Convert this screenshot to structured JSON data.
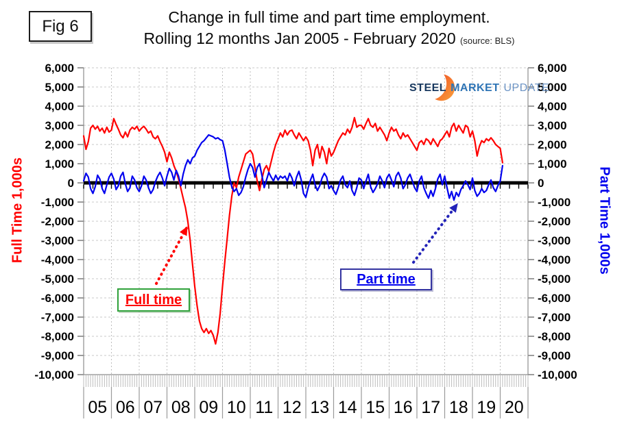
{
  "fig_label": "Fig 6",
  "title": {
    "line1": "Change in full time and part time employment.",
    "line2": "Rolling 12 months Jan 2005 - February 2020",
    "source": "(source: BLS)"
  },
  "logo": {
    "word1": "STEEL",
    "word2": "MARKET",
    "word3": "UPDATE"
  },
  "axes": {
    "left_title": "Full Time 1,000s",
    "right_title": "Part Time 1,000s"
  },
  "annotations": {
    "full_time": "Full time",
    "part_time": "Part time"
  },
  "colors": {
    "full_time_line": "#ff0000",
    "part_time_line": "#0000ee",
    "zero_line": "#000000",
    "grid": "#c9c9c9",
    "full_time_box_border": "#2fa13a",
    "part_time_box_border": "#3333a0",
    "full_time_text": "#ff0000",
    "part_time_text": "#0000ee",
    "arrow_red": "#ff0000",
    "arrow_blue": "#2323b8",
    "logo_steel": "#17375E",
    "logo_market": "#2E74B5",
    "logo_update": "#6b93c4",
    "logo_orange_start": "#f04e23",
    "logo_orange_end": "#f9a23c"
  },
  "chart_data": {
    "type": "line",
    "title": "Change in full time and part time employment. Rolling 12 months Jan 2005 - February 2020",
    "x_start": "2005-01",
    "x_end": "2020-02",
    "x_year_labels": [
      "05",
      "06",
      "07",
      "08",
      "09",
      "10",
      "11",
      "12",
      "13",
      "14",
      "15",
      "16",
      "17",
      "18",
      "19",
      "20"
    ],
    "y_ticks": [
      6000,
      5000,
      4000,
      3000,
      2000,
      1000,
      0,
      -1000,
      -2000,
      -3000,
      -4000,
      -5000,
      -6000,
      -7000,
      -8000,
      -9000,
      -10000
    ],
    "ylim": [
      -10000,
      6000
    ],
    "y_units": "thousands of jobs (rolling 12-month change)",
    "grid": true,
    "legend_position": "in-plot annotation boxes",
    "series": [
      {
        "name": "Full time",
        "color": "#ff0000",
        "monthly_values": [
          2450,
          1750,
          2150,
          2850,
          3000,
          2800,
          2950,
          2700,
          2850,
          2600,
          2900,
          2650,
          2750,
          3350,
          3050,
          2800,
          2500,
          2350,
          2650,
          2400,
          2750,
          2900,
          2800,
          2950,
          2700,
          2850,
          2950,
          2800,
          2600,
          2700,
          2400,
          2300,
          2450,
          2150,
          1900,
          1600,
          1100,
          1600,
          1300,
          900,
          600,
          200,
          -300,
          -800,
          -1300,
          -2000,
          -3000,
          -4200,
          -5400,
          -6400,
          -7200,
          -7600,
          -7800,
          -7600,
          -7850,
          -7700,
          -7950,
          -8400,
          -7800,
          -6800,
          -5400,
          -4100,
          -2900,
          -1700,
          -700,
          0,
          -250,
          300,
          700,
          1100,
          1500,
          1600,
          1700,
          1500,
          800,
          100,
          -400,
          200,
          700,
          900,
          600,
          1100,
          1600,
          2000,
          2300,
          2600,
          2400,
          2750,
          2500,
          2700,
          2750,
          2500,
          2300,
          2600,
          2400,
          2200,
          2400,
          2200,
          1700,
          900,
          1700,
          2000,
          1300,
          1900,
          1600,
          1000,
          1800,
          1400,
          1600,
          1900,
          2200,
          2400,
          2600,
          2500,
          2800,
          2600,
          2900,
          3400,
          2900,
          3000,
          3000,
          2800,
          3100,
          3350,
          3000,
          2900,
          3100,
          2700,
          2900,
          2700,
          2500,
          2200,
          2600,
          2900,
          2700,
          2800,
          2500,
          2300,
          2600,
          2400,
          2500,
          2300,
          2100,
          1900,
          1700,
          2100,
          2200,
          2000,
          2300,
          2200,
          2000,
          2300,
          2100,
          1900,
          2200,
          2300,
          2500,
          2700,
          2400,
          2900,
          3100,
          2700,
          3000,
          2800,
          2600,
          3000,
          2900,
          2400,
          2700,
          2200,
          1400,
          1900,
          2200,
          2100,
          2300,
          2200,
          2350,
          2200,
          2000,
          1900,
          1800,
          1050
        ]
      },
      {
        "name": "Part time",
        "color": "#0000ee",
        "monthly_values": [
          100,
          500,
          300,
          -300,
          -550,
          -200,
          400,
          200,
          -300,
          -550,
          -100,
          300,
          500,
          200,
          -350,
          -150,
          350,
          550,
          -50,
          -450,
          -250,
          350,
          150,
          -250,
          -450,
          -150,
          350,
          150,
          -250,
          -550,
          -350,
          50,
          350,
          550,
          250,
          -150,
          350,
          750,
          550,
          150,
          650,
          350,
          -150,
          450,
          900,
          1200,
          1000,
          1300,
          1400,
          1700,
          1900,
          2100,
          2200,
          2350,
          2500,
          2450,
          2400,
          2300,
          2350,
          2250,
          2200,
          1700,
          1000,
          300,
          -200,
          -450,
          -300,
          -650,
          -500,
          -200,
          300,
          700,
          1000,
          800,
          300,
          800,
          1000,
          400,
          -250,
          150,
          550,
          300,
          100,
          400,
          150,
          350,
          250,
          350,
          100,
          500,
          250,
          -150,
          300,
          600,
          150,
          -550,
          -750,
          -250,
          150,
          450,
          -100,
          -400,
          -150,
          250,
          500,
          300,
          -300,
          -150,
          -400,
          -600,
          -250,
          150,
          350,
          -100,
          -250,
          100,
          -400,
          -650,
          -250,
          250,
          150,
          -300,
          100,
          450,
          -200,
          -500,
          -300,
          -50,
          350,
          100,
          -250,
          250,
          450,
          150,
          -200,
          350,
          550,
          250,
          -300,
          -100,
          250,
          450,
          100,
          -250,
          -450,
          100,
          350,
          -250,
          -550,
          -800,
          -400,
          -700,
          -300,
          200,
          450,
          -100,
          350,
          -250,
          -800,
          -450,
          -900,
          -500,
          -700,
          -350,
          -150,
          100,
          -100,
          -350,
          250,
          -400,
          -700,
          -550,
          -300,
          -500,
          -400,
          -100,
          150,
          -250,
          -450,
          -150,
          100,
          900
        ]
      }
    ]
  }
}
